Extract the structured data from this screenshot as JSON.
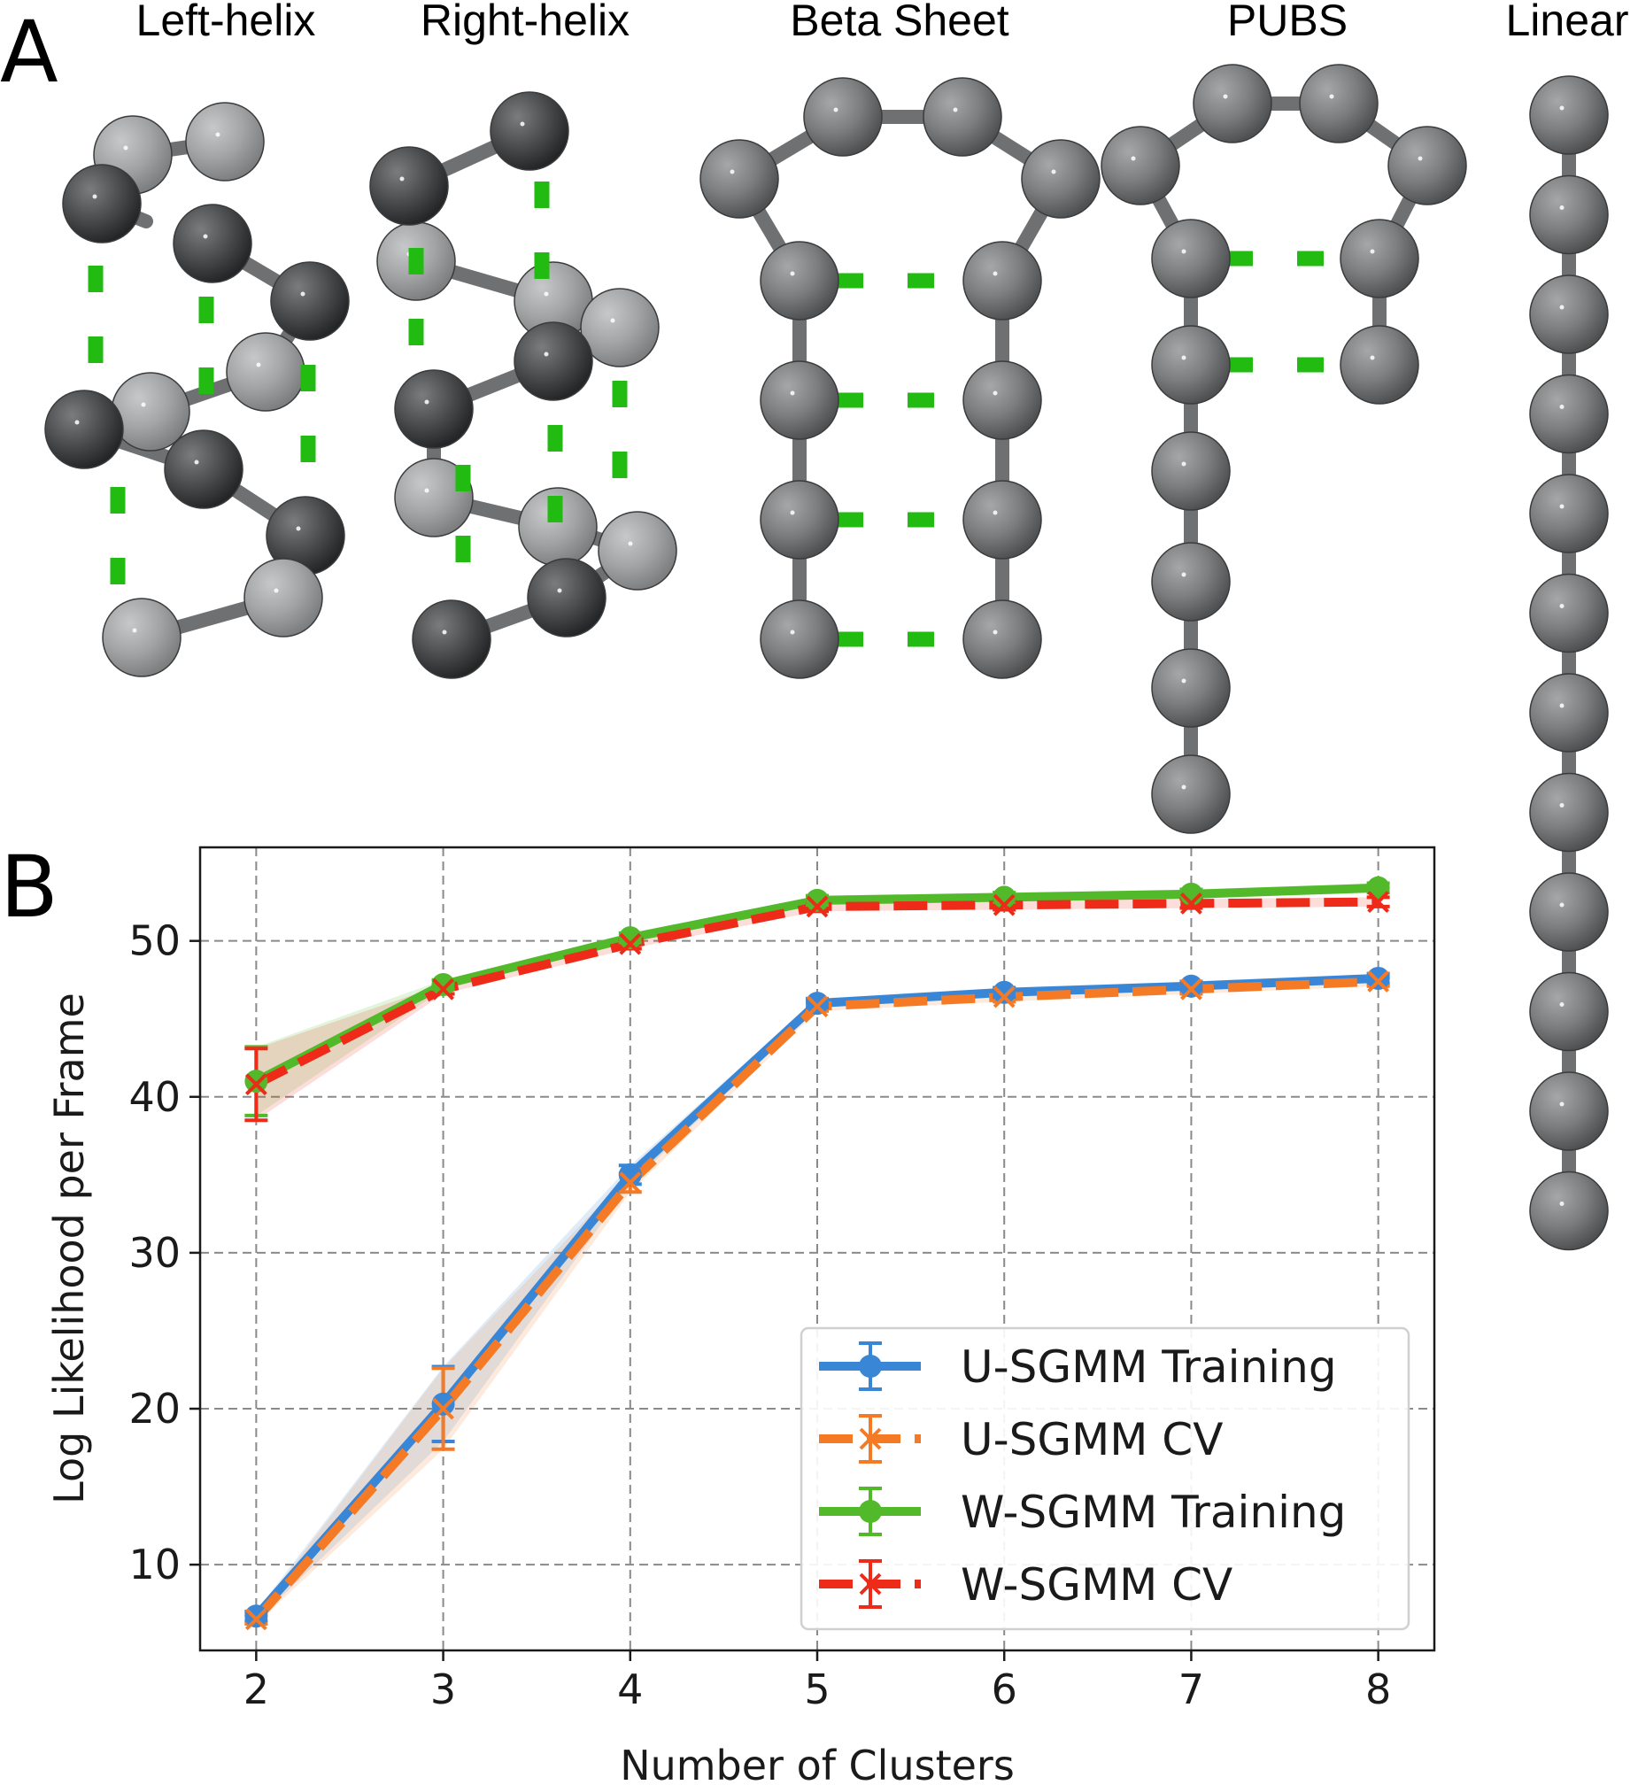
{
  "panels": {
    "a": "A",
    "b": "B"
  },
  "structures": [
    "Left-helix",
    "Right-helix",
    "Beta Sheet",
    "PUBS",
    "Linear"
  ],
  "colors": {
    "bead": "#7d7f81",
    "bead_dark": "#4a4b4d",
    "bead_light": "#a4a6a7",
    "bond": "#6e7072",
    "hbond": "#22bb11",
    "u_train": "#3a86d6",
    "u_cv": "#f57a26",
    "w_train": "#52b92a",
    "w_cv": "#ee2a18"
  },
  "chart_data": {
    "type": "line",
    "xlabel": "Number of Clusters",
    "ylabel": "Log Likelihood per Frame",
    "xlim": [
      1.7,
      8.3
    ],
    "ylim": [
      4.5,
      56
    ],
    "xticks": [
      2,
      3,
      4,
      5,
      6,
      7,
      8
    ],
    "yticks": [
      10,
      20,
      30,
      40,
      50
    ],
    "grid": true,
    "legend_position": "lower-right",
    "x": [
      2,
      3,
      4,
      5,
      6,
      7,
      8
    ],
    "series": [
      {
        "name": "U-SGMM Training",
        "color": "#3a86d6",
        "dash": "solid",
        "marker": "circle",
        "values": [
          6.7,
          20.3,
          35.0,
          46.0,
          46.7,
          47.1,
          47.6
        ],
        "errors": [
          0.3,
          2.4,
          0.6,
          0.3,
          0.3,
          0.3,
          0.3
        ]
      },
      {
        "name": "U-SGMM CV",
        "color": "#f57a26",
        "dash": "dashed",
        "marker": "x",
        "values": [
          6.5,
          20.0,
          34.5,
          45.8,
          46.4,
          46.9,
          47.4
        ],
        "errors": [
          0.3,
          2.6,
          0.6,
          0.3,
          0.3,
          0.3,
          0.3
        ]
      },
      {
        "name": "W-SGMM Training",
        "color": "#52b92a",
        "dash": "solid",
        "marker": "circle",
        "values": [
          41.0,
          47.2,
          50.2,
          52.6,
          52.8,
          53.0,
          53.4
        ],
        "errors": [
          2.2,
          0.3,
          0.3,
          0.3,
          0.3,
          0.3,
          0.3
        ]
      },
      {
        "name": "W-SGMM CV",
        "color": "#ee2a18",
        "dash": "dashed",
        "marker": "x",
        "values": [
          40.8,
          46.9,
          49.8,
          52.2,
          52.3,
          52.4,
          52.5
        ],
        "errors": [
          2.3,
          0.3,
          0.3,
          0.3,
          0.3,
          0.3,
          0.3
        ]
      }
    ]
  }
}
